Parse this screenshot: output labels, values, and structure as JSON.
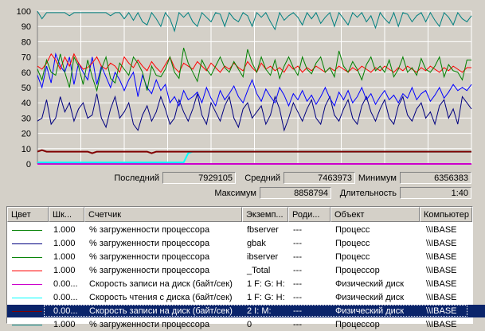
{
  "chart_data": {
    "type": "line",
    "ylim": [
      0,
      100
    ],
    "y_ticks": [
      "100",
      "90",
      "80",
      "70",
      "60",
      "50",
      "40",
      "30",
      "20",
      "10",
      "0"
    ],
    "grid": true,
    "series": [
      {
        "color": "#008080",
        "values": [
          100,
          95,
          99,
          99,
          99,
          99,
          99,
          97,
          99,
          99,
          99,
          99,
          99,
          99,
          99,
          99,
          97,
          99,
          99,
          95,
          99,
          94,
          99,
          93,
          91,
          99,
          95,
          90,
          99,
          95,
          87,
          99,
          96,
          99,
          93,
          90,
          99,
          96,
          93,
          99,
          98,
          90,
          99,
          95,
          93,
          99,
          97,
          90,
          99,
          96,
          99,
          93,
          88,
          99,
          94,
          97,
          99,
          96,
          91,
          99,
          95,
          99,
          92,
          96,
          99,
          90,
          99,
          95,
          91,
          99,
          96,
          99,
          93,
          97,
          89,
          99,
          95,
          92,
          99,
          90,
          99,
          98,
          93,
          97,
          99,
          93,
          99,
          94,
          90,
          99,
          96,
          91,
          99,
          95,
          93,
          97
        ]
      },
      {
        "color": "#008000",
        "values": [
          62,
          55,
          68,
          60,
          58,
          72,
          60,
          50,
          70,
          64,
          52,
          68,
          57,
          48,
          62,
          70,
          56,
          53,
          66,
          62,
          58,
          70,
          66,
          60,
          48,
          64,
          58,
          57,
          62,
          70,
          60,
          56,
          76,
          66,
          60,
          54,
          68,
          62,
          58,
          64,
          70,
          63,
          60,
          67,
          62,
          57,
          75,
          66,
          60,
          70,
          62,
          58,
          68,
          56,
          64,
          70,
          63,
          58,
          70,
          62,
          59,
          66,
          70,
          60,
          63,
          57,
          74,
          64,
          60,
          67,
          62,
          55,
          65,
          70,
          61,
          64,
          60,
          68,
          57,
          62,
          70,
          60,
          63,
          58,
          69,
          62,
          60,
          64,
          70,
          57,
          65,
          61,
          60,
          55,
          68,
          68
        ]
      },
      {
        "color": "#ff0000",
        "values": [
          64,
          62,
          66,
          72,
          68,
          62,
          70,
          64,
          72,
          66,
          62,
          63,
          66,
          70,
          64,
          62,
          66,
          64,
          60,
          70,
          66,
          63,
          68,
          64,
          61,
          67,
          63,
          60,
          65,
          70,
          63,
          60,
          66,
          64,
          62,
          67,
          64,
          61,
          66,
          63,
          60,
          64,
          62,
          66,
          63,
          61,
          67,
          63,
          60,
          66,
          62,
          64,
          61,
          63,
          60,
          65,
          62,
          64,
          60,
          63,
          61,
          64,
          62,
          60,
          63,
          61,
          64,
          62,
          60,
          63,
          61,
          64,
          62,
          60,
          63,
          61,
          64,
          62,
          60,
          63,
          61,
          64,
          62,
          60,
          63,
          61,
          64,
          62,
          60,
          63,
          61,
          64,
          62,
          60,
          63,
          63
        ]
      },
      {
        "color": "#0000ff",
        "values": [
          58,
          50,
          64,
          53,
          72,
          64,
          60,
          70,
          52,
          66,
          60,
          55,
          70,
          52,
          64,
          57,
          50,
          60,
          55,
          48,
          55,
          60,
          44,
          58,
          50,
          46,
          55,
          48,
          52,
          40,
          44,
          38,
          48,
          42,
          44,
          47,
          40,
          50,
          43,
          38,
          48,
          42,
          46,
          51,
          44,
          40,
          48,
          55,
          46,
          41,
          49,
          44,
          40,
          50,
          45,
          38,
          46,
          42,
          48,
          41,
          45,
          39,
          44,
          50,
          43,
          38,
          47,
          42,
          48,
          40,
          44,
          50,
          42,
          46,
          39,
          44,
          48,
          42,
          45,
          40,
          46,
          43,
          50,
          42,
          46,
          48,
          41,
          45,
          50,
          43,
          47,
          52,
          48,
          50,
          48,
          52
        ]
      },
      {
        "color": "#000080",
        "values": [
          28,
          30,
          42,
          26,
          30,
          44,
          34,
          40,
          28,
          36,
          40,
          30,
          32,
          46,
          30,
          24,
          36,
          44,
          30,
          34,
          40,
          26,
          22,
          32,
          38,
          28,
          34,
          44,
          36,
          26,
          30,
          42,
          34,
          28,
          36,
          46,
          32,
          26,
          40,
          34,
          28,
          38,
          44,
          30,
          24,
          36,
          40,
          30,
          34,
          38,
          26,
          32,
          44,
          36,
          22,
          30,
          40,
          34,
          28,
          36,
          42,
          30,
          26,
          38,
          44,
          32,
          28,
          36,
          42,
          30,
          26,
          38,
          44,
          34,
          28,
          36,
          42,
          30,
          26,
          38,
          44,
          32,
          28,
          36,
          40,
          30,
          34,
          26,
          38,
          42,
          30,
          36,
          26,
          44,
          40,
          36
        ]
      },
      {
        "color": "#800000",
        "values": [
          8,
          9,
          8,
          8,
          8,
          8,
          8,
          8,
          8,
          8,
          8,
          8,
          7,
          8,
          8,
          8,
          8,
          8,
          8,
          8,
          8,
          8,
          8,
          8,
          8,
          7,
          8,
          8,
          8,
          8,
          8,
          8,
          8,
          8,
          8,
          8,
          8,
          8,
          8,
          8,
          8,
          8,
          8,
          8,
          8,
          8,
          8,
          8,
          8,
          8,
          8,
          8,
          8,
          8,
          8,
          8,
          8,
          8,
          8,
          8,
          8,
          8,
          8,
          8,
          8,
          8,
          8,
          8,
          8,
          8,
          8,
          8,
          8,
          8,
          8,
          8,
          8,
          8,
          8,
          8,
          8,
          8,
          8,
          8,
          8,
          8,
          8,
          8,
          8,
          8,
          8,
          8,
          8,
          8,
          8,
          8
        ]
      },
      {
        "color": "#00ffff",
        "values": [
          1,
          1,
          1,
          1,
          1,
          1,
          1,
          1,
          1,
          1,
          1,
          1,
          1,
          1,
          1,
          1,
          1,
          1,
          1,
          1,
          1,
          1,
          1,
          1,
          1,
          1,
          1,
          1,
          1,
          1,
          1,
          1,
          1,
          7,
          8,
          8,
          8,
          8,
          8,
          8,
          8,
          8,
          8,
          8,
          8,
          8,
          8,
          8,
          8,
          8,
          8,
          8,
          8,
          8,
          8,
          8,
          8,
          8,
          8,
          8,
          8,
          8,
          8,
          8,
          8,
          8,
          8,
          8,
          8,
          8,
          8,
          8,
          8,
          8,
          8,
          8,
          8,
          8,
          8,
          8,
          8,
          8,
          8,
          8,
          8,
          8,
          8,
          8,
          8,
          8,
          8,
          8,
          8,
          8,
          8,
          8
        ]
      },
      {
        "color": "#cc00cc",
        "values": [
          0,
          0,
          0,
          0,
          0,
          0,
          0,
          0,
          0,
          0,
          0,
          0,
          0,
          0,
          0,
          0,
          0,
          0,
          0,
          0,
          0,
          0,
          0,
          0,
          0,
          0,
          0,
          0,
          0,
          0,
          0,
          0,
          0,
          0,
          0,
          0,
          0,
          0,
          0,
          0,
          0,
          0,
          0,
          0,
          0,
          0,
          0,
          0,
          0,
          0,
          0,
          0,
          0,
          0,
          0,
          0,
          0,
          0,
          0,
          0,
          0,
          0,
          0,
          0,
          0,
          0,
          0,
          0,
          0,
          0,
          0,
          0,
          0,
          0,
          0,
          0,
          0,
          0,
          0,
          0,
          0,
          0,
          0,
          0,
          0,
          0,
          0,
          0,
          0,
          0,
          0,
          0,
          0,
          0,
          0,
          0
        ]
      }
    ]
  },
  "stats": {
    "last_label": "Последний",
    "last_value": "7929105",
    "avg_label": "Средний",
    "avg_value": "7463973",
    "min_label": "Минимум",
    "min_value": "6356383",
    "max_label": "Максимум",
    "max_value": "8858794",
    "dur_label": "Длительность",
    "dur_value": "1:40"
  },
  "columns": [
    "Цвет",
    "Шк...",
    "Счетчик",
    "Экземп...",
    "Роди...",
    "Объект",
    "Компьютер"
  ],
  "rows": [
    {
      "color": "#008000",
      "scale": "1.000",
      "counter": "% загруженности процессора",
      "instance": "fbserver",
      "parent": "---",
      "object": "Процесс",
      "computer": "\\\\IBASE",
      "selected": false
    },
    {
      "color": "#000080",
      "scale": "1.000",
      "counter": "% загруженности процессора",
      "instance": "gbak",
      "parent": "---",
      "object": "Процесс",
      "computer": "\\\\IBASE",
      "selected": false
    },
    {
      "color": "#008000",
      "scale": "1.000",
      "counter": "% загруженности процессора",
      "instance": "ibserver",
      "parent": "---",
      "object": "Процесс",
      "computer": "\\\\IBASE",
      "selected": false
    },
    {
      "color": "#ff0000",
      "scale": "1.000",
      "counter": "% загруженности процессора",
      "instance": "_Total",
      "parent": "---",
      "object": "Процессор",
      "computer": "\\\\IBASE",
      "selected": false
    },
    {
      "color": "#cc00cc",
      "scale": "0.00...",
      "counter": "Скорость записи на диск (байт/сек)",
      "instance": "1 F: G: H:",
      "parent": "---",
      "object": "Физический диск",
      "computer": "\\\\IBASE",
      "selected": false
    },
    {
      "color": "#00ffff",
      "scale": "0.00...",
      "counter": "Скорость чтения с диска (байт/сек)",
      "instance": "1 F: G: H:",
      "parent": "---",
      "object": "Физический диск",
      "computer": "\\\\IBASE",
      "selected": false
    },
    {
      "color": "#800000",
      "scale": "0.00...",
      "counter": "Скорость записи на диск (байт/сек)",
      "instance": "2 I: M:",
      "parent": "---",
      "object": "Физический диск",
      "computer": "\\\\IBASE",
      "selected": true
    },
    {
      "color": "#008080",
      "scale": "1.000",
      "counter": "% загруженности процессора",
      "instance": "0",
      "parent": "---",
      "object": "Процессор",
      "computer": "\\\\IBASE",
      "selected": false
    }
  ]
}
